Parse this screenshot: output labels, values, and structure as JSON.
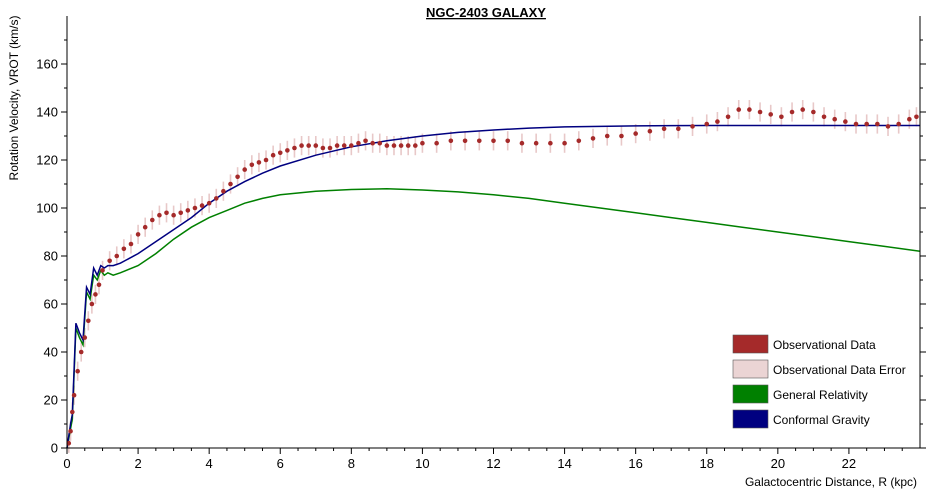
{
  "chart_data": {
    "type": "line",
    "title": "NGC-2403 GALAXY",
    "xlabel": "Galactocentric Distance, R (kpc)",
    "ylabel": "Rotation Velocity, VROT (km/s)",
    "xlim": [
      0,
      24
    ],
    "ylim": [
      0,
      180
    ],
    "x_ticks": [
      0,
      2,
      4,
      6,
      8,
      10,
      12,
      14,
      16,
      18,
      20,
      22
    ],
    "y_ticks": [
      0,
      20,
      40,
      60,
      80,
      100,
      120,
      140,
      160
    ],
    "grid": false,
    "legend_position": "bottom-right",
    "colors": {
      "observational": "#a52a2a",
      "error": "#e8c8c8",
      "general_relativity": "#008000",
      "conformal_gravity": "#000080"
    },
    "legend": [
      {
        "label": "Observational Data",
        "color": "#a52a2a"
      },
      {
        "label": "Observational Data Error",
        "color": "#ebd4d4"
      },
      {
        "label": "General Relativity",
        "color": "#008000"
      },
      {
        "label": "Conformal Gravity",
        "color": "#000080"
      }
    ],
    "series": [
      {
        "name": "Observational Data",
        "kind": "points_with_error",
        "error": 4,
        "points": [
          [
            0.05,
            2
          ],
          [
            0.1,
            7
          ],
          [
            0.15,
            15
          ],
          [
            0.2,
            22
          ],
          [
            0.3,
            32
          ],
          [
            0.4,
            40
          ],
          [
            0.5,
            46
          ],
          [
            0.6,
            53
          ],
          [
            0.7,
            60
          ],
          [
            0.8,
            64
          ],
          [
            0.9,
            68
          ],
          [
            1.0,
            74
          ],
          [
            1.2,
            78
          ],
          [
            1.4,
            80
          ],
          [
            1.6,
            83
          ],
          [
            1.8,
            85
          ],
          [
            2.0,
            89
          ],
          [
            2.2,
            92
          ],
          [
            2.4,
            95
          ],
          [
            2.6,
            97
          ],
          [
            2.8,
            98
          ],
          [
            3.0,
            97
          ],
          [
            3.2,
            98
          ],
          [
            3.4,
            99
          ],
          [
            3.6,
            100
          ],
          [
            3.8,
            101
          ],
          [
            4.0,
            102
          ],
          [
            4.2,
            104
          ],
          [
            4.4,
            107
          ],
          [
            4.6,
            110
          ],
          [
            4.8,
            113
          ],
          [
            5.0,
            116
          ],
          [
            5.2,
            118
          ],
          [
            5.4,
            119
          ],
          [
            5.6,
            120
          ],
          [
            5.8,
            122
          ],
          [
            6.0,
            123
          ],
          [
            6.2,
            124
          ],
          [
            6.4,
            125
          ],
          [
            6.6,
            126
          ],
          [
            6.8,
            126
          ],
          [
            7.0,
            126
          ],
          [
            7.2,
            125
          ],
          [
            7.4,
            125
          ],
          [
            7.6,
            126
          ],
          [
            7.8,
            126
          ],
          [
            8.0,
            126
          ],
          [
            8.2,
            127
          ],
          [
            8.4,
            128
          ],
          [
            8.6,
            127
          ],
          [
            8.8,
            127
          ],
          [
            9.0,
            126
          ],
          [
            9.2,
            126
          ],
          [
            9.4,
            126
          ],
          [
            9.6,
            126
          ],
          [
            9.8,
            126
          ],
          [
            10.0,
            127
          ],
          [
            10.4,
            127
          ],
          [
            10.8,
            128
          ],
          [
            11.2,
            128
          ],
          [
            11.6,
            128
          ],
          [
            12.0,
            128
          ],
          [
            12.4,
            128
          ],
          [
            12.8,
            127
          ],
          [
            13.2,
            127
          ],
          [
            13.6,
            127
          ],
          [
            14.0,
            127
          ],
          [
            14.4,
            128
          ],
          [
            14.8,
            129
          ],
          [
            15.2,
            130
          ],
          [
            15.6,
            130
          ],
          [
            16.0,
            131
          ],
          [
            16.4,
            132
          ],
          [
            16.8,
            133
          ],
          [
            17.2,
            133
          ],
          [
            17.6,
            134
          ],
          [
            18.0,
            135
          ],
          [
            18.3,
            136
          ],
          [
            18.6,
            138
          ],
          [
            18.9,
            141
          ],
          [
            19.2,
            141
          ],
          [
            19.5,
            140
          ],
          [
            19.8,
            139
          ],
          [
            20.1,
            138
          ],
          [
            20.4,
            140
          ],
          [
            20.7,
            141
          ],
          [
            21.0,
            140
          ],
          [
            21.3,
            138
          ],
          [
            21.6,
            137
          ],
          [
            21.9,
            136
          ],
          [
            22.2,
            135
          ],
          [
            22.5,
            135
          ],
          [
            22.8,
            135
          ],
          [
            23.1,
            134
          ],
          [
            23.4,
            135
          ],
          [
            23.7,
            137
          ],
          [
            23.9,
            138
          ]
        ]
      },
      {
        "name": "General Relativity",
        "kind": "line",
        "points": [
          [
            0,
            0
          ],
          [
            0.1,
            8
          ],
          [
            0.15,
            12
          ],
          [
            0.25,
            50
          ],
          [
            0.35,
            46
          ],
          [
            0.45,
            43
          ],
          [
            0.55,
            65
          ],
          [
            0.65,
            62
          ],
          [
            0.75,
            72
          ],
          [
            0.85,
            70
          ],
          [
            0.95,
            74
          ],
          [
            1.05,
            72
          ],
          [
            1.15,
            73
          ],
          [
            1.3,
            72
          ],
          [
            1.5,
            73
          ],
          [
            2,
            76
          ],
          [
            2.5,
            81
          ],
          [
            3,
            87
          ],
          [
            3.5,
            92
          ],
          [
            4,
            96
          ],
          [
            4.5,
            99
          ],
          [
            5,
            102
          ],
          [
            5.5,
            104
          ],
          [
            6,
            105.5
          ],
          [
            7,
            107
          ],
          [
            8,
            107.7
          ],
          [
            9,
            108
          ],
          [
            10,
            107.5
          ],
          [
            11,
            106.7
          ],
          [
            12,
            105.5
          ],
          [
            13,
            104
          ],
          [
            14,
            102
          ],
          [
            15,
            100
          ],
          [
            16,
            98
          ],
          [
            17,
            96
          ],
          [
            18,
            94
          ],
          [
            19,
            92
          ],
          [
            20,
            90
          ],
          [
            21,
            88
          ],
          [
            22,
            86
          ],
          [
            23,
            84
          ],
          [
            24,
            82
          ]
        ]
      },
      {
        "name": "Conformal Gravity",
        "kind": "line",
        "points": [
          [
            0,
            0
          ],
          [
            0.1,
            10
          ],
          [
            0.15,
            14
          ],
          [
            0.25,
            52
          ],
          [
            0.35,
            48
          ],
          [
            0.45,
            45
          ],
          [
            0.55,
            67
          ],
          [
            0.65,
            64
          ],
          [
            0.75,
            75
          ],
          [
            0.85,
            72
          ],
          [
            0.95,
            76
          ],
          [
            1.05,
            75
          ],
          [
            1.15,
            76
          ],
          [
            1.3,
            76
          ],
          [
            1.5,
            77
          ],
          [
            2,
            81
          ],
          [
            2.5,
            86
          ],
          [
            3,
            91
          ],
          [
            3.5,
            96
          ],
          [
            4,
            102
          ],
          [
            4.5,
            107
          ],
          [
            5,
            111
          ],
          [
            5.5,
            114.5
          ],
          [
            6,
            117.5
          ],
          [
            7,
            122
          ],
          [
            8,
            125.5
          ],
          [
            9,
            128
          ],
          [
            10,
            130
          ],
          [
            11,
            131.5
          ],
          [
            12,
            132.5
          ],
          [
            13,
            133.3
          ],
          [
            14,
            133.8
          ],
          [
            15,
            134
          ],
          [
            16,
            134.2
          ],
          [
            17,
            134.3
          ],
          [
            18,
            134.4
          ],
          [
            19,
            134.4
          ],
          [
            20,
            134.4
          ],
          [
            21,
            134.4
          ],
          [
            22,
            134.4
          ],
          [
            23,
            134.4
          ],
          [
            24,
            134.4
          ]
        ]
      }
    ]
  }
}
